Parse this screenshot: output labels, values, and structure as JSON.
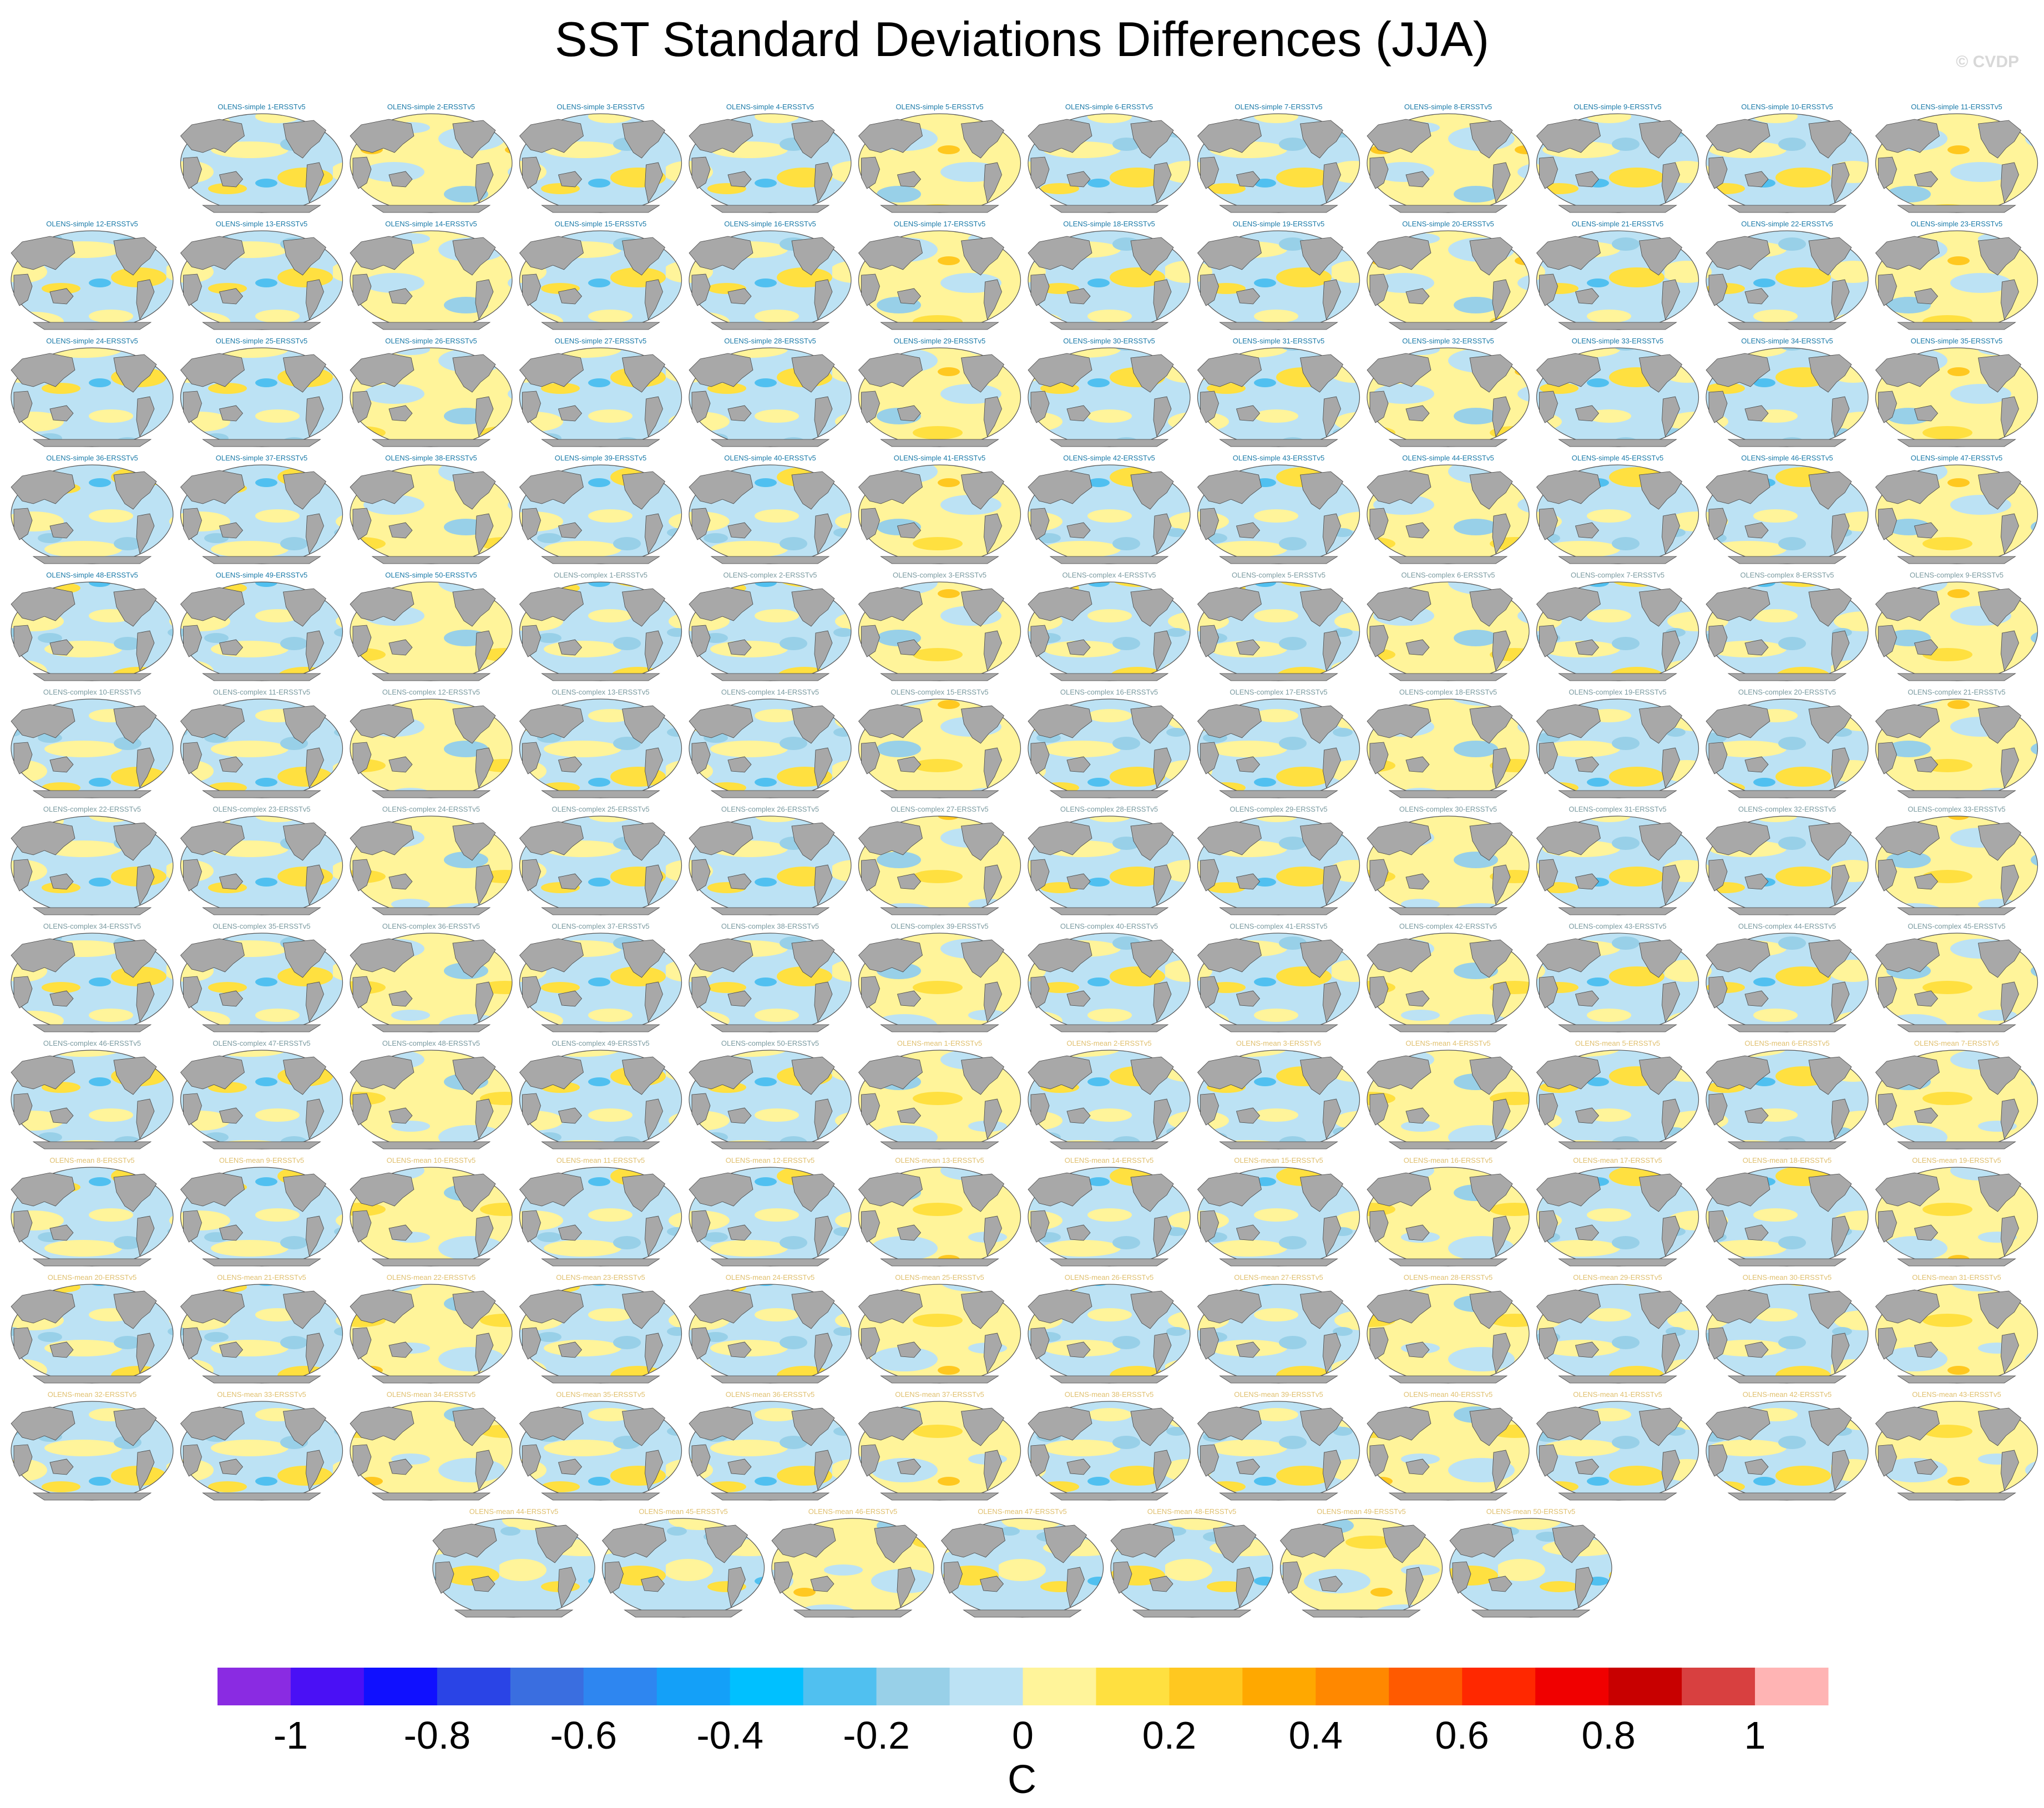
{
  "title": "SST Standard Deviations Differences (JJA)",
  "watermark": "© CVDP",
  "panel_suffix": "ERSSTv5",
  "groups": [
    {
      "prefix": "OLENS-simple",
      "count": 50,
      "label_color": "#1a7aa8"
    },
    {
      "prefix": "OLENS-complex",
      "count": 50,
      "label_color": "#7a9aa0"
    },
    {
      "prefix": "OLENS-mean",
      "count": 50,
      "label_color": "#e0c070"
    }
  ],
  "chart_data": {
    "type": "heatmap",
    "title": "SST Standard Deviations Differences (JJA)",
    "panel_count": 150,
    "projection": "Robinson (global, Pacific-centered)",
    "land_color": "#a8a8a8",
    "colorbar": {
      "label": "C",
      "ticks": [
        "-1",
        "-0.8",
        "-0.6",
        "-0.4",
        "-0.2",
        "0",
        "0.2",
        "0.4",
        "0.6",
        "0.8",
        "1"
      ],
      "bins": [
        -1.1,
        -1.0,
        -0.9,
        -0.8,
        -0.7,
        -0.6,
        -0.5,
        -0.4,
        -0.3,
        -0.2,
        -0.1,
        0,
        0.1,
        0.2,
        0.3,
        0.4,
        0.5,
        0.6,
        0.7,
        0.8,
        0.9,
        1.0,
        1.1
      ],
      "colors": [
        "#8a2be2",
        "#4a10f5",
        "#1010ff",
        "#2a44e6",
        "#3a6ee0",
        "#2e86f0",
        "#14a0f8",
        "#00c0ff",
        "#50c0f0",
        "#98d0e8",
        "#bce2f4",
        "#fff49a",
        "#ffe040",
        "#ffc820",
        "#ffa800",
        "#ff8800",
        "#ff5a00",
        "#ff2800",
        "#f00000",
        "#c80000",
        "#d84040",
        "#ffb4b4"
      ]
    }
  }
}
